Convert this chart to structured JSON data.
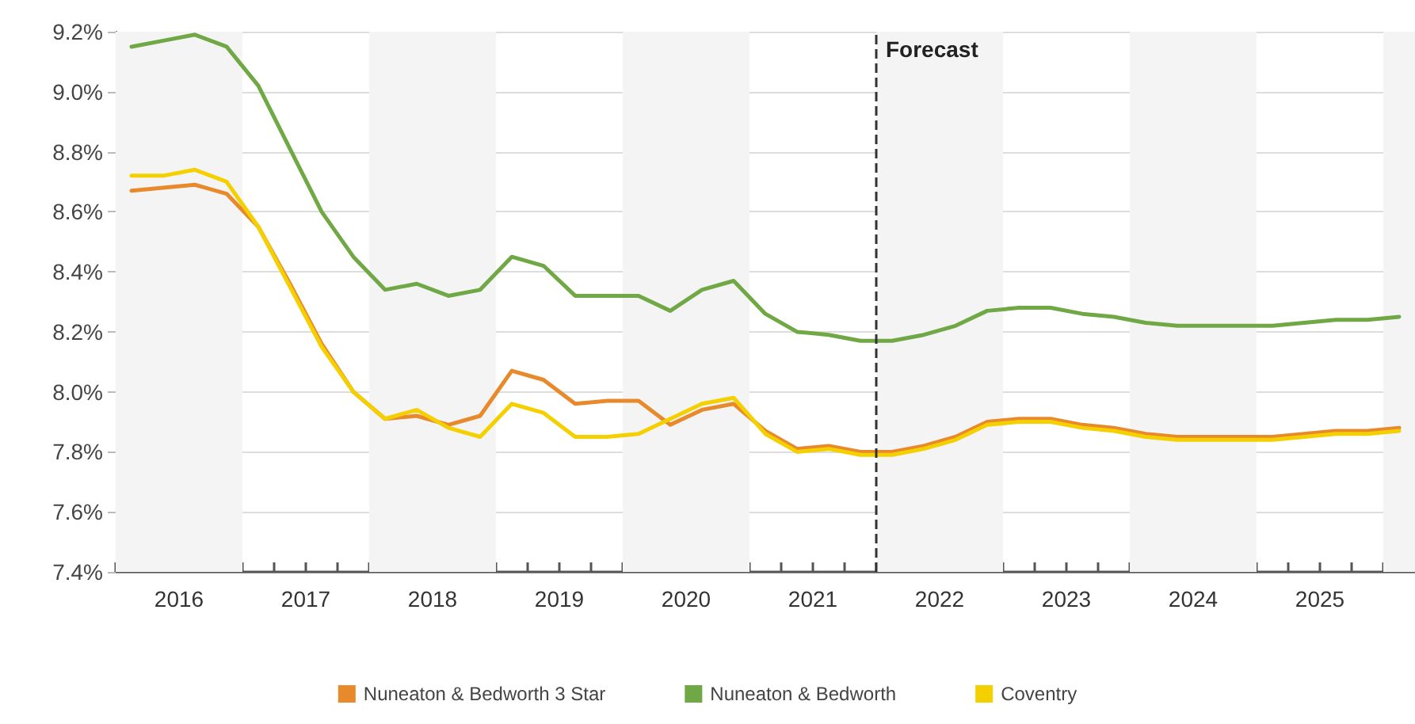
{
  "chart_data": {
    "type": "line",
    "x": [
      2016.125,
      2016.375,
      2016.625,
      2016.875,
      2017.125,
      2017.375,
      2017.625,
      2017.875,
      2018.125,
      2018.375,
      2018.625,
      2018.875,
      2019.125,
      2019.375,
      2019.625,
      2019.875,
      2020.125,
      2020.375,
      2020.625,
      2020.875,
      2021.125,
      2021.375,
      2021.625,
      2021.875,
      2022.125,
      2022.375,
      2022.625,
      2022.875,
      2023.125,
      2023.375,
      2023.625,
      2023.875,
      2024.125,
      2024.375,
      2024.625,
      2024.875,
      2025.125,
      2025.375,
      2025.625,
      2025.875,
      2026.125
    ],
    "series": [
      {
        "name": "Nuneaton & Bedworth 3 Star",
        "color": "#e8892b",
        "values": [
          8.67,
          8.68,
          8.69,
          8.66,
          8.55,
          8.36,
          8.16,
          8.0,
          7.91,
          7.92,
          7.89,
          7.92,
          8.07,
          8.04,
          7.96,
          7.97,
          7.97,
          7.89,
          7.94,
          7.96,
          7.87,
          7.81,
          7.82,
          7.8,
          7.8,
          7.82,
          7.85,
          7.9,
          7.91,
          7.91,
          7.89,
          7.88,
          7.86,
          7.85,
          7.85,
          7.85,
          7.85,
          7.86,
          7.87,
          7.87,
          7.88
        ]
      },
      {
        "name": "Nuneaton & Bedworth",
        "color": "#6fa845",
        "values": [
          9.15,
          9.17,
          9.19,
          9.15,
          9.02,
          8.81,
          8.6,
          8.45,
          8.34,
          8.36,
          8.32,
          8.34,
          8.45,
          8.42,
          8.32,
          8.32,
          8.32,
          8.27,
          8.34,
          8.37,
          8.26,
          8.2,
          8.19,
          8.17,
          8.17,
          8.19,
          8.22,
          8.27,
          8.28,
          8.28,
          8.26,
          8.25,
          8.23,
          8.22,
          8.22,
          8.22,
          8.22,
          8.23,
          8.24,
          8.24,
          8.25
        ]
      },
      {
        "name": "Coventry",
        "color": "#f5d000",
        "values": [
          8.72,
          8.72,
          8.74,
          8.7,
          8.55,
          8.35,
          8.15,
          8.0,
          7.91,
          7.94,
          7.88,
          7.85,
          7.96,
          7.93,
          7.85,
          7.85,
          7.86,
          7.91,
          7.96,
          7.98,
          7.86,
          7.8,
          7.81,
          7.79,
          7.79,
          7.81,
          7.84,
          7.89,
          7.9,
          7.9,
          7.88,
          7.87,
          7.85,
          7.84,
          7.84,
          7.84,
          7.84,
          7.85,
          7.86,
          7.86,
          7.87
        ]
      }
    ],
    "xlim": [
      2016,
      2026.25
    ],
    "xticks": [
      {
        "value": 2016,
        "label": null
      },
      {
        "value": 2016.25,
        "label": null
      },
      {
        "value": 2016.5,
        "label": "2016"
      },
      {
        "value": 2016.75,
        "label": null
      },
      {
        "value": 2017,
        "label": null
      },
      {
        "value": 2017.25,
        "label": null
      },
      {
        "value": 2017.5,
        "label": "2017"
      },
      {
        "value": 2017.75,
        "label": null
      },
      {
        "value": 2018,
        "label": null
      },
      {
        "value": 2018.25,
        "label": null
      },
      {
        "value": 2018.5,
        "label": "2018"
      },
      {
        "value": 2018.75,
        "label": null
      },
      {
        "value": 2019,
        "label": null
      },
      {
        "value": 2019.25,
        "label": null
      },
      {
        "value": 2019.5,
        "label": "2019"
      },
      {
        "value": 2019.75,
        "label": null
      },
      {
        "value": 2020,
        "label": null
      },
      {
        "value": 2020.25,
        "label": null
      },
      {
        "value": 2020.5,
        "label": "2020"
      },
      {
        "value": 2020.75,
        "label": null
      },
      {
        "value": 2021,
        "label": null
      },
      {
        "value": 2021.25,
        "label": null
      },
      {
        "value": 2021.5,
        "label": "2021"
      },
      {
        "value": 2021.75,
        "label": null
      },
      {
        "value": 2022,
        "label": null
      },
      {
        "value": 2022.25,
        "label": null
      },
      {
        "value": 2022.5,
        "label": "2022"
      },
      {
        "value": 2022.75,
        "label": null
      },
      {
        "value": 2023,
        "label": null
      },
      {
        "value": 2023.25,
        "label": null
      },
      {
        "value": 2023.5,
        "label": "2023"
      },
      {
        "value": 2023.75,
        "label": null
      },
      {
        "value": 2024,
        "label": null
      },
      {
        "value": 2024.25,
        "label": null
      },
      {
        "value": 2024.5,
        "label": "2024"
      },
      {
        "value": 2024.75,
        "label": null
      },
      {
        "value": 2025,
        "label": null
      },
      {
        "value": 2025.25,
        "label": null
      },
      {
        "value": 2025.5,
        "label": "2025"
      },
      {
        "value": 2025.75,
        "label": null
      },
      {
        "value": 2026,
        "label": null
      }
    ],
    "ylim": [
      7.4,
      9.2
    ],
    "yticks": [
      {
        "value": 7.4,
        "label": "7.4%"
      },
      {
        "value": 7.6,
        "label": "7.6%"
      },
      {
        "value": 7.8,
        "label": "7.8%"
      },
      {
        "value": 8.0,
        "label": "8.0%"
      },
      {
        "value": 8.2,
        "label": "8.2%"
      },
      {
        "value": 8.4,
        "label": "8.4%"
      },
      {
        "value": 8.6,
        "label": "8.6%"
      },
      {
        "value": 8.8,
        "label": "8.8%"
      },
      {
        "value": 9.0,
        "label": "9.0%"
      },
      {
        "value": 9.2,
        "label": "9.2%"
      }
    ],
    "grid": "y",
    "legend": "bottom",
    "marker": "none",
    "line_style": "solid",
    "ref_lines": [
      {
        "axis": "x",
        "value": 2022,
        "label": "Forecast",
        "color": "#333333",
        "line_style": "dashed"
      }
    ],
    "bands": [
      {
        "axis": "x",
        "from": 2016,
        "to": 2017,
        "color": "#f4f4f4"
      },
      {
        "axis": "x",
        "from": 2018,
        "to": 2019,
        "color": "#f4f4f4"
      },
      {
        "axis": "x",
        "from": 2020,
        "to": 2021,
        "color": "#f4f4f4"
      },
      {
        "axis": "x",
        "from": 2022,
        "to": 2023,
        "color": "#f4f4f4"
      },
      {
        "axis": "x",
        "from": 2024,
        "to": 2025,
        "color": "#f4f4f4"
      },
      {
        "axis": "x",
        "from": 2026,
        "to": 2026.25,
        "color": "#f4f4f4"
      }
    ]
  }
}
